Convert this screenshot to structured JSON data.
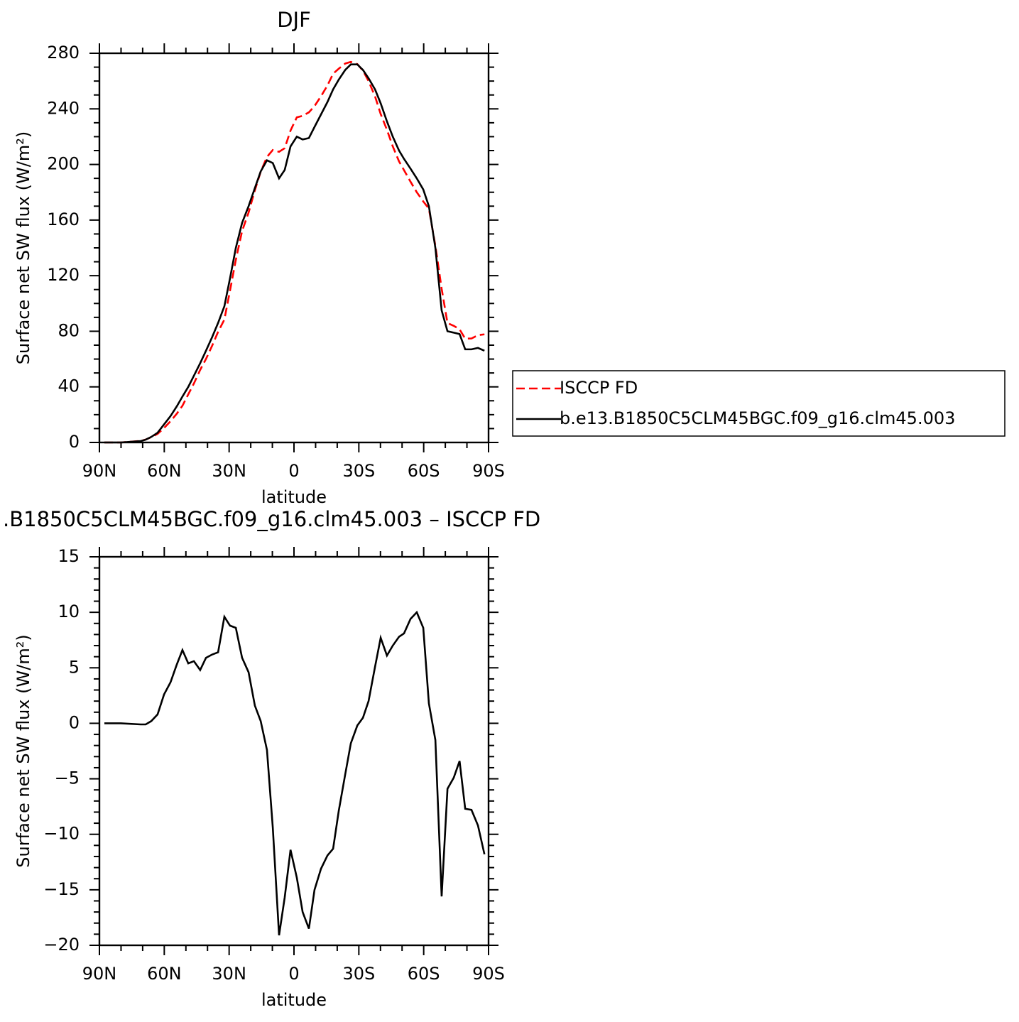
{
  "chart_data": [
    {
      "type": "line",
      "title": "DJF",
      "xlabel": "latitude",
      "ylabel": "Surface net SW flux (W/m²)",
      "x": [
        87.7,
        80.1,
        70.9,
        68.6,
        66.0,
        63.1,
        60.1,
        57.1,
        54.2,
        51.6,
        48.9,
        46.3,
        43.4,
        40.7,
        37.8,
        35.1,
        32.2,
        29.6,
        26.9,
        24.0,
        21.0,
        18.1,
        15.4,
        12.5,
        9.8,
        6.9,
        4.3,
        1.6,
        -1.3,
        -4.0,
        -6.9,
        -9.5,
        -12.5,
        -15.5,
        -18.1,
        -20.7,
        -23.7,
        -26.3,
        -29.3,
        -31.9,
        -34.5,
        -37.5,
        -40.1,
        -43.0,
        -45.7,
        -48.6,
        -50.9,
        -53.9,
        -56.8,
        -59.8,
        -62.4,
        -65.4,
        -68.3,
        -71.0,
        -73.9,
        -76.6,
        -79.2,
        -82.1,
        -85.1,
        -88.1
      ],
      "series": [
        {
          "name": "ISCCP FD",
          "color": "#ff0000",
          "dashed": true,
          "values": [
            0,
            0,
            1.1,
            2.1,
            3.8,
            6.2,
            10.4,
            15.3,
            20.7,
            26.4,
            34.6,
            42.4,
            52.2,
            60.1,
            69.8,
            79.6,
            88.4,
            109.2,
            131.4,
            152.1,
            165.4,
            181.4,
            194.8,
            205.4,
            210.4,
            209.1,
            211.7,
            224.4,
            233.9,
            235.0,
            237.5,
            242.0,
            249.1,
            256.9,
            265.3,
            268.9,
            272.6,
            273.8,
            272.2,
            267.5,
            260.0,
            248.9,
            236.3,
            224.9,
            213.0,
            202.2,
            195.9,
            187.6,
            180.0,
            173.4,
            168.2,
            141.5,
            110.6,
            85.9,
            83.9,
            81.4,
            74.7,
            74.8,
            77.2,
            77.8
          ]
        },
        {
          "name": "b.e13.B1850C5CLM45BGC.f09_g16.clm45.003",
          "color": "#000000",
          "dashed": false,
          "values": [
            0,
            0,
            1,
            2,
            4,
            7,
            13,
            19,
            26,
            33,
            40,
            48,
            57,
            66,
            76,
            86,
            98,
            118,
            140,
            158,
            170,
            183,
            195,
            203,
            201,
            190,
            196,
            213,
            220,
            218,
            219,
            227,
            236,
            245,
            254,
            261,
            268,
            272,
            272,
            268,
            262,
            254,
            244,
            231,
            220,
            210,
            204,
            197,
            190,
            182,
            170,
            140,
            95,
            80,
            79,
            78,
            67,
            67,
            68,
            66
          ]
        }
      ],
      "xlim": [
        90,
        -90
      ],
      "xticks": [
        {
          "value": 90,
          "label": "90N"
        },
        {
          "value": 60,
          "label": "60N"
        },
        {
          "value": 30,
          "label": "30N"
        },
        0,
        {
          "value": -30,
          "label": "30S"
        },
        {
          "value": -60,
          "label": "60S"
        },
        {
          "value": -90,
          "label": "90S"
        }
      ],
      "ylim": [
        0,
        280
      ],
      "yticks": [
        0,
        40,
        80,
        120,
        160,
        200,
        240,
        280
      ],
      "legend": "right"
    },
    {
      "type": "line",
      "title": ".B1850C5CLM45BGC.f09_g16.clm45.003 – ISCCP FD",
      "xlabel": "latitude",
      "ylabel": "Surface net SW flux (W/m²)",
      "x": [
        87.7,
        80.1,
        70.9,
        68.6,
        66.0,
        63.1,
        60.1,
        57.1,
        54.2,
        51.6,
        48.9,
        46.3,
        43.4,
        40.7,
        37.8,
        35.1,
        32.2,
        29.6,
        26.9,
        24.0,
        21.0,
        18.1,
        15.4,
        12.5,
        9.8,
        6.9,
        4.3,
        1.6,
        -1.3,
        -4.0,
        -6.9,
        -9.5,
        -12.5,
        -15.5,
        -18.1,
        -20.7,
        -23.7,
        -26.3,
        -29.3,
        -31.9,
        -34.5,
        -37.5,
        -40.1,
        -43.0,
        -45.7,
        -48.6,
        -50.9,
        -53.9,
        -56.8,
        -59.8,
        -62.4,
        -65.4,
        -68.3,
        -71.0,
        -73.9,
        -76.6,
        -79.2,
        -82.1,
        -85.1,
        -88.1
      ],
      "series": [
        {
          "color": "#000000",
          "dashed": false,
          "values": [
            0,
            0,
            -0.1,
            -0.1,
            0.2,
            0.8,
            2.6,
            3.7,
            5.3,
            6.6,
            5.4,
            5.6,
            4.8,
            5.9,
            6.2,
            6.4,
            9.6,
            8.8,
            8.6,
            5.9,
            4.6,
            1.6,
            0.2,
            -2.4,
            -9.4,
            -19.1,
            -15.7,
            -11.4,
            -13.9,
            -17.0,
            -18.5,
            -15.0,
            -13.1,
            -11.9,
            -11.3,
            -7.9,
            -4.6,
            -1.8,
            -0.2,
            0.5,
            2.0,
            5.1,
            7.7,
            6.1,
            7.0,
            7.8,
            8.1,
            9.4,
            10.0,
            8.6,
            1.8,
            -1.5,
            -15.6,
            -5.9,
            -4.9,
            -3.4,
            -7.7,
            -7.8,
            -9.2,
            -11.8
          ]
        }
      ],
      "xlim": [
        90,
        -90
      ],
      "xticks": [
        {
          "value": 90,
          "label": "90N"
        },
        {
          "value": 60,
          "label": "60N"
        },
        {
          "value": 30,
          "label": "30N"
        },
        0,
        {
          "value": -30,
          "label": "30S"
        },
        {
          "value": -60,
          "label": "60S"
        },
        {
          "value": -90,
          "label": "90S"
        }
      ],
      "ylim": [
        -20,
        15
      ],
      "yticks": [
        {
          "value": -20,
          "label": "−20"
        },
        {
          "value": -15,
          "label": "−15"
        },
        {
          "value": -10,
          "label": "−10"
        },
        {
          "value": -5,
          "label": "−5"
        },
        0,
        5,
        10,
        15
      ]
    }
  ]
}
